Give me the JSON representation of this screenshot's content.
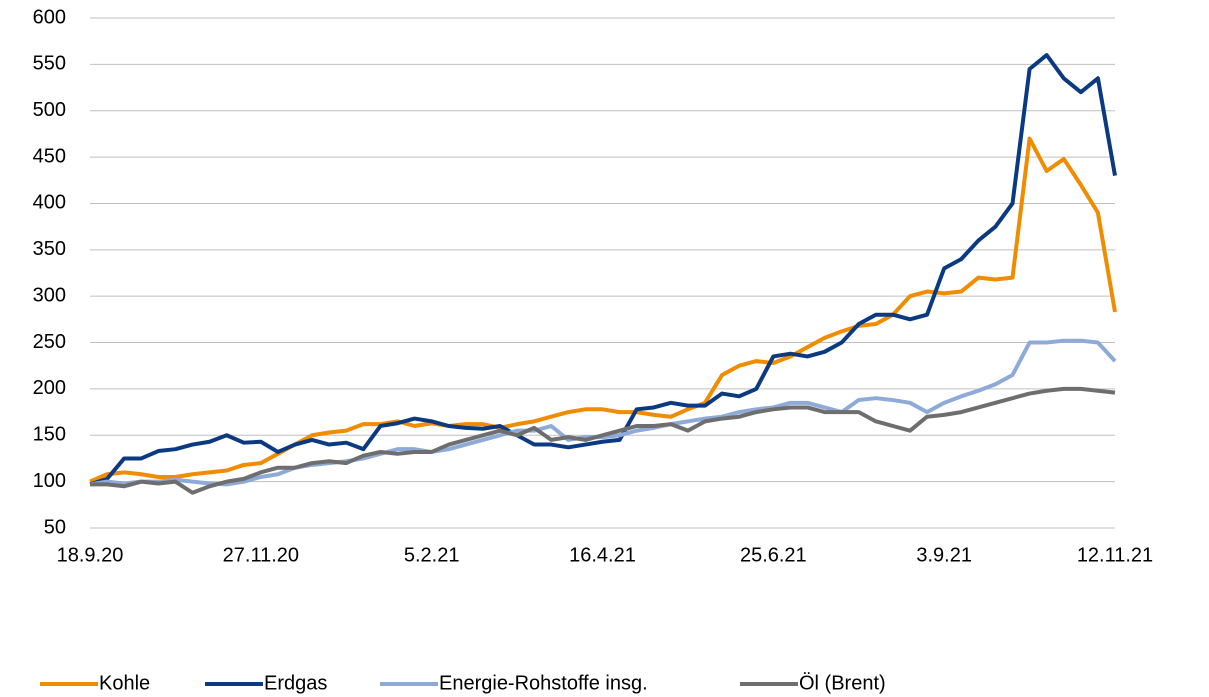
{
  "chart_data": {
    "type": "line",
    "categories": [
      "18.9.20",
      null,
      null,
      null,
      null,
      null,
      null,
      null,
      null,
      null,
      "27.11.20",
      null,
      null,
      null,
      null,
      null,
      null,
      null,
      null,
      null,
      "5.2.21",
      null,
      null,
      null,
      null,
      null,
      null,
      null,
      null,
      null,
      "16.4.21",
      null,
      null,
      null,
      null,
      null,
      null,
      null,
      null,
      null,
      "25.6.21",
      null,
      null,
      null,
      null,
      null,
      null,
      null,
      null,
      null,
      "3.9.21",
      null,
      null,
      null,
      null,
      null,
      null,
      null,
      null,
      null,
      "12.11.21"
    ],
    "series": [
      {
        "name": "Kohle",
        "color": "#f08c00",
        "values": [
          100,
          108,
          110,
          108,
          105,
          105,
          108,
          110,
          112,
          118,
          120,
          130,
          140,
          150,
          153,
          155,
          162,
          162,
          165,
          160,
          163,
          160,
          162,
          162,
          158,
          162,
          165,
          170,
          175,
          178,
          178,
          175,
          175,
          172,
          170,
          178,
          185,
          215,
          225,
          230,
          228,
          235,
          245,
          255,
          262,
          268,
          270,
          280,
          300,
          305,
          303,
          305,
          320,
          318,
          320,
          470,
          435,
          448,
          420,
          390,
          283
        ]
      },
      {
        "name": "Erdgas",
        "color": "#0b3a82",
        "values": [
          97,
          103,
          125,
          125,
          133,
          135,
          140,
          143,
          150,
          142,
          143,
          132,
          140,
          145,
          140,
          142,
          135,
          160,
          163,
          168,
          165,
          160,
          158,
          157,
          160,
          150,
          140,
          140,
          137,
          140,
          143,
          145,
          178,
          180,
          185,
          182,
          182,
          195,
          192,
          200,
          235,
          238,
          235,
          240,
          250,
          270,
          280,
          280,
          275,
          280,
          330,
          340,
          360,
          375,
          400,
          545,
          560,
          535,
          520,
          535,
          430
        ]
      },
      {
        "name": "Energie-Rohstoffe insg.",
        "color": "#8eaad8",
        "values": [
          97,
          100,
          98,
          100,
          100,
          102,
          100,
          98,
          97,
          100,
          105,
          108,
          115,
          118,
          120,
          122,
          125,
          130,
          135,
          135,
          132,
          135,
          140,
          145,
          150,
          155,
          155,
          160,
          145,
          148,
          148,
          150,
          155,
          158,
          162,
          165,
          168,
          170,
          175,
          178,
          180,
          185,
          185,
          180,
          175,
          188,
          190,
          188,
          185,
          175,
          185,
          192,
          198,
          205,
          215,
          250,
          250,
          252,
          252,
          250,
          230
        ]
      },
      {
        "name": "Öl (Brent)",
        "color": "#6e6e6e",
        "values": [
          97,
          97,
          95,
          100,
          98,
          100,
          88,
          95,
          100,
          103,
          110,
          115,
          115,
          120,
          122,
          120,
          128,
          132,
          130,
          132,
          132,
          140,
          145,
          150,
          155,
          150,
          158,
          145,
          148,
          145,
          150,
          155,
          160,
          160,
          162,
          155,
          165,
          168,
          170,
          175,
          178,
          180,
          180,
          175,
          175,
          175,
          165,
          160,
          155,
          170,
          172,
          175,
          180,
          185,
          190,
          195,
          198,
          200,
          200,
          198,
          196
        ]
      }
    ],
    "ylim": [
      50,
      600
    ],
    "yticks": [
      50,
      100,
      150,
      200,
      250,
      300,
      350,
      400,
      450,
      500,
      550,
      600
    ],
    "grid": true,
    "legend": "bottom"
  }
}
